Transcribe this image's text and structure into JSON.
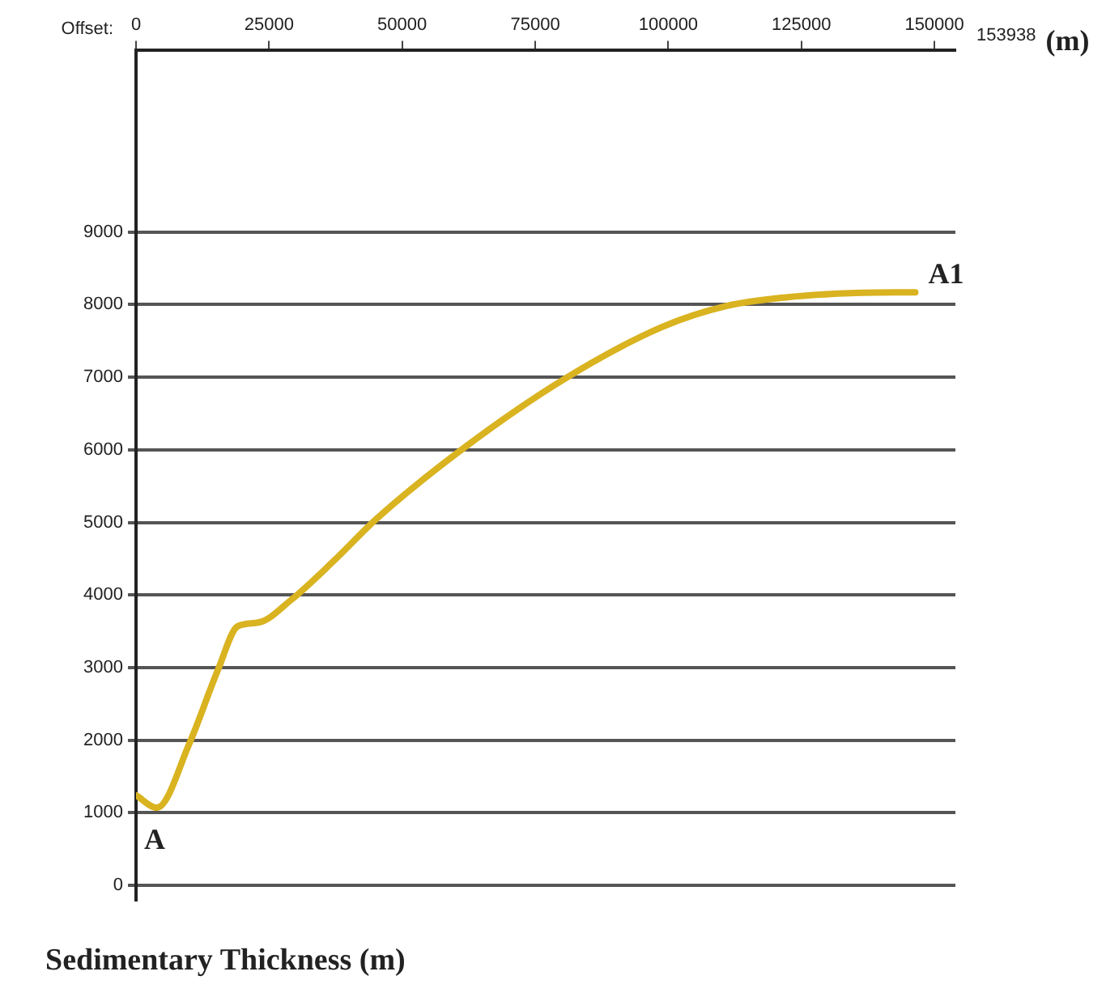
{
  "chart_data": {
    "type": "line",
    "title": "Sedimentary Thickness (m)",
    "xlabel": "Offset:",
    "x": [
      0,
      3940,
      10000,
      15450,
      19100,
      23000,
      29100,
      37300,
      45200,
      61500,
      80600,
      98800,
      110900,
      122100,
      135200,
      146400
    ],
    "series": [
      {
        "color": "#d9b320",
        "values": [
          1240,
          1070,
          1950,
          2980,
          3570,
          3620,
          3930,
          4480,
          5050,
          6020,
          6980,
          7690,
          7980,
          8100,
          8160,
          8170
        ]
      }
    ],
    "xlim": [
      0,
      153938
    ],
    "xticks": [
      0,
      25000,
      50000,
      75000,
      100000,
      125000,
      150000
    ],
    "ylim": [
      -200,
      11500
    ],
    "yticks": [
      0,
      1000,
      2000,
      3000,
      4000,
      5000,
      6000,
      7000,
      8000,
      9000
    ],
    "grid": "y",
    "legend": false,
    "marker": "none",
    "line_style": "solid",
    "annotations": [
      {
        "text": "A",
        "x": 0,
        "y": 1070
      },
      {
        "text": "A1",
        "x": 146400,
        "y": 8170
      },
      "153938",
      "(m)"
    ]
  }
}
